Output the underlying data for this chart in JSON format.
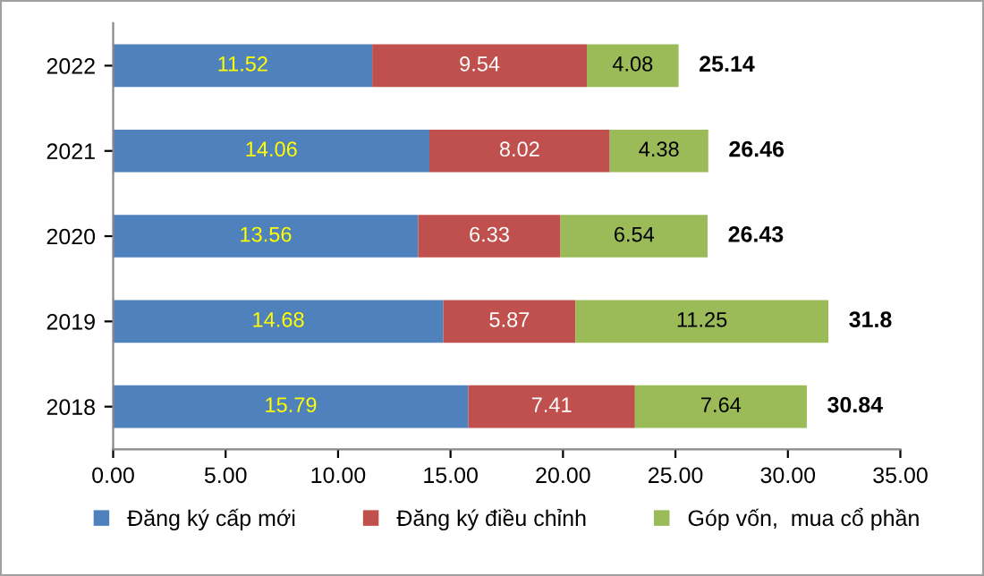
{
  "chart_data": {
    "type": "bar",
    "orientation": "horizontal",
    "stacked": true,
    "categories": [
      "2022",
      "2021",
      "2020",
      "2019",
      "2018"
    ],
    "series": [
      {
        "name": "Đăng ký cấp mới",
        "color": "#4f81bd",
        "values": [
          11.52,
          14.06,
          13.56,
          14.68,
          15.79
        ]
      },
      {
        "name": "Đăng ký điều chỉnh",
        "color": "#c0504d",
        "values": [
          9.54,
          8.02,
          6.33,
          5.87,
          7.41
        ]
      },
      {
        "name": "Góp vốn,  mua cổ phần",
        "color": "#9bbb59",
        "values": [
          4.08,
          4.38,
          6.54,
          11.25,
          7.64
        ]
      }
    ],
    "totals": [
      "25.14",
      "26.46",
      "26.43",
      "31.8",
      "30.84"
    ],
    "data_labels": true,
    "xlim": [
      0,
      35
    ],
    "xticks": [
      {
        "value": 0,
        "label": "0.00"
      },
      {
        "value": 5,
        "label": "5.00"
      },
      {
        "value": 10,
        "label": "10.00"
      },
      {
        "value": 15,
        "label": "15.00"
      },
      {
        "value": 20,
        "label": "20.00"
      },
      {
        "value": 25,
        "label": "25.00"
      },
      {
        "value": 30,
        "label": "30.00"
      },
      {
        "value": 35,
        "label": "35.00"
      }
    ],
    "grid": false,
    "legend": "bottom"
  }
}
